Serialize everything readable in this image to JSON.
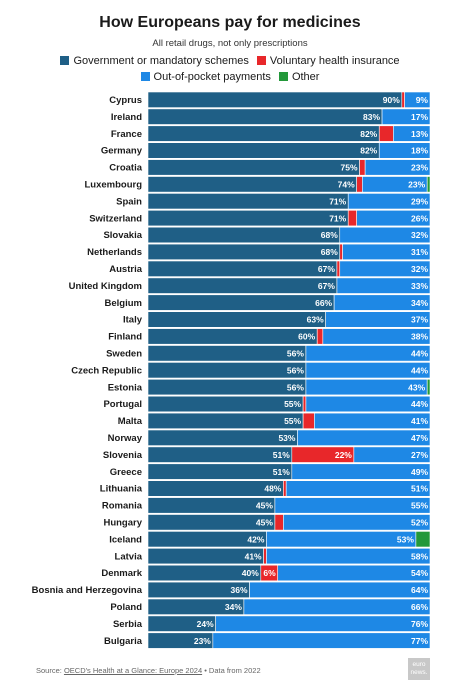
{
  "header": {
    "title": "How Europeans pay for medicines",
    "subtitle": "All retail drugs, not only prescriptions"
  },
  "legend": [
    {
      "label": "Government or mandatory schemes",
      "color": "#1f5f86"
    },
    {
      "label": "Voluntary health insurance",
      "color": "#e8272a"
    },
    {
      "label": "Out-of-pocket payments",
      "color": "#1e88e5"
    },
    {
      "label": "Other",
      "color": "#23983a"
    }
  ],
  "chart_data": {
    "type": "bar",
    "orientation": "horizontal",
    "stacked": true,
    "title": "How Europeans pay for medicines",
    "subtitle": "All retail drugs, not only prescriptions",
    "xlim": [
      0,
      100
    ],
    "unit": "%",
    "categories": [
      "Cyprus",
      "Ireland",
      "France",
      "Germany",
      "Croatia",
      "Luxembourg",
      "Spain",
      "Switzerland",
      "Slovakia",
      "Netherlands",
      "Austria",
      "United Kingdom",
      "Belgium",
      "Italy",
      "Finland",
      "Sweden",
      "Czech Republic",
      "Estonia",
      "Portugal",
      "Malta",
      "Norway",
      "Slovenia",
      "Greece",
      "Lithuania",
      "Romania",
      "Hungary",
      "Iceland",
      "Latvia",
      "Denmark",
      "Bosnia and Herzegovina",
      "Poland",
      "Serbia",
      "Bulgaria"
    ],
    "series": [
      {
        "name": "Government or mandatory schemes",
        "color": "#1f5f86",
        "values": [
          90,
          83,
          82,
          82,
          75,
          74,
          71,
          71,
          68,
          68,
          67,
          67,
          66,
          63,
          60,
          56,
          56,
          56,
          55,
          55,
          53,
          51,
          51,
          48,
          45,
          45,
          42,
          41,
          40,
          36,
          34,
          24,
          23
        ]
      },
      {
        "name": "Voluntary health insurance",
        "color": "#e8272a",
        "values": [
          1,
          0,
          5,
          0,
          2,
          2,
          0,
          3,
          0,
          1,
          1,
          0,
          0,
          0,
          2,
          0,
          0,
          0,
          1,
          4,
          0,
          22,
          0,
          1,
          0,
          3,
          0,
          1,
          6,
          0,
          0,
          0,
          0
        ]
      },
      {
        "name": "Out-of-pocket payments",
        "color": "#1e88e5",
        "values": [
          9,
          17,
          13,
          18,
          23,
          23,
          29,
          26,
          32,
          31,
          32,
          33,
          34,
          37,
          38,
          44,
          44,
          43,
          44,
          41,
          47,
          27,
          49,
          51,
          55,
          52,
          53,
          58,
          54,
          64,
          66,
          76,
          77
        ]
      },
      {
        "name": "Other",
        "color": "#23983a",
        "values": [
          0,
          0,
          0,
          0,
          0,
          1,
          0,
          0,
          0,
          0,
          0,
          0,
          0,
          0,
          0,
          0,
          0,
          1,
          0,
          0,
          0,
          0,
          0,
          0,
          0,
          0,
          5,
          0,
          0,
          0,
          0,
          0,
          0
        ]
      }
    ],
    "labeled_series": [
      "Government or mandatory schemes",
      "Out-of-pocket payments"
    ],
    "extra_labels": [
      {
        "category": "Slovenia",
        "series": "Voluntary health insurance"
      },
      {
        "category": "Denmark",
        "series": "Voluntary health insurance"
      }
    ]
  },
  "source": {
    "prefix": "Source: ",
    "link": "OECD's Health at a Glance: Europe 2024",
    "suffix": " • Data from 2022"
  },
  "logo": {
    "line1": "euro",
    "line2": "news."
  }
}
